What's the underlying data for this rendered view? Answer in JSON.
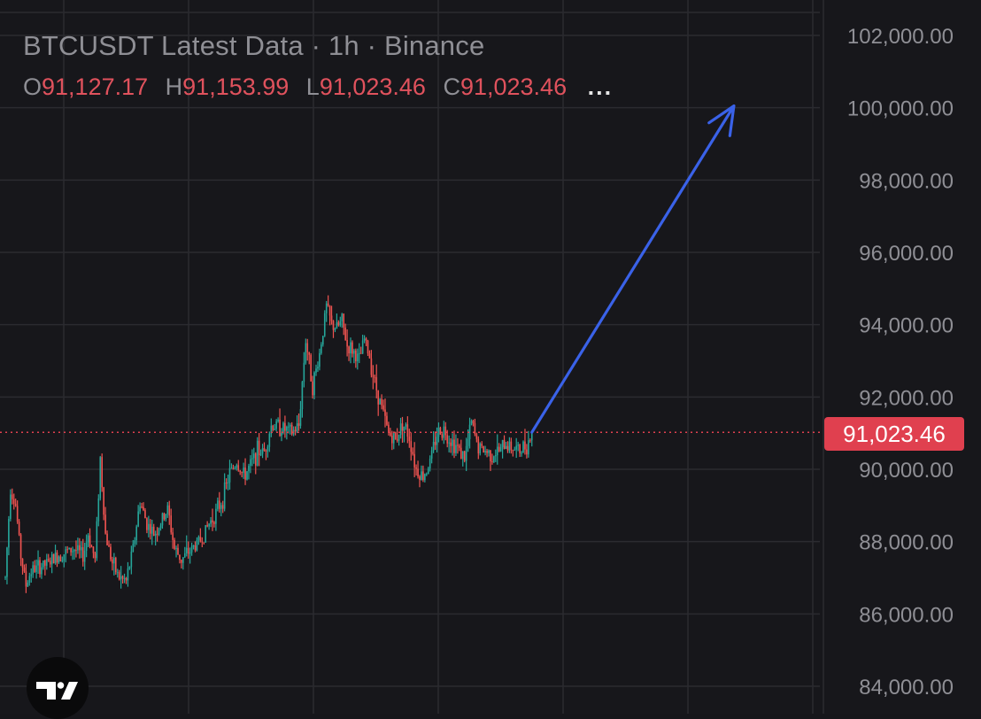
{
  "legend": {
    "title": "BTCUSDT Latest Data · 1h · Binance",
    "open_key": "O",
    "open": "91,127.17",
    "high_key": "H",
    "high": "91,153.99",
    "low_key": "L",
    "low": "91,023.46",
    "close_key": "C",
    "close": "91,023.46",
    "more": "..."
  },
  "last_price_label": "91,023.46",
  "colors": {
    "up": "#26a69a",
    "down": "#ef5350",
    "arrow": "#3a62e8",
    "price_line": "#e0404f",
    "grid": "#2b2b30",
    "axis_text": "#8f8f95"
  },
  "logo_icon": "tradingview-logo-icon",
  "chart_data": {
    "type": "candlestick",
    "symbol": "BTCUSDT",
    "interval": "1h",
    "exchange": "Binance",
    "y_ticks": [
      "102,000.00",
      "100,000.00",
      "98,000.00",
      "96,000.00",
      "94,000.00",
      "92,000.00",
      "90,000.00",
      "88,000.00",
      "86,000.00",
      "84,000.00"
    ],
    "ylim": [
      83500,
      103000
    ],
    "grid": true,
    "last_price": 91023.46,
    "price_path": [
      [
        0,
        87000
      ],
      [
        3,
        89500
      ],
      [
        6,
        89000
      ],
      [
        9,
        87600
      ],
      [
        12,
        86800
      ],
      [
        15,
        87200
      ],
      [
        20,
        87300
      ],
      [
        25,
        87400
      ],
      [
        30,
        87600
      ],
      [
        35,
        87700
      ],
      [
        40,
        87800
      ],
      [
        45,
        87600
      ],
      [
        48,
        88200
      ],
      [
        52,
        87500
      ],
      [
        55,
        90300
      ],
      [
        58,
        88200
      ],
      [
        62,
        87400
      ],
      [
        66,
        87000
      ],
      [
        70,
        86900
      ],
      [
        74,
        87800
      ],
      [
        78,
        89100
      ],
      [
        82,
        88500
      ],
      [
        86,
        88200
      ],
      [
        90,
        88500
      ],
      [
        94,
        88900
      ],
      [
        98,
        87800
      ],
      [
        102,
        87500
      ],
      [
        106,
        87700
      ],
      [
        110,
        87900
      ],
      [
        114,
        88100
      ],
      [
        118,
        88500
      ],
      [
        122,
        88800
      ],
      [
        126,
        89200
      ],
      [
        130,
        89900
      ],
      [
        134,
        90200
      ],
      [
        138,
        89800
      ],
      [
        142,
        90100
      ],
      [
        146,
        90500
      ],
      [
        150,
        90500
      ],
      [
        154,
        91200
      ],
      [
        158,
        91200
      ],
      [
        162,
        91100
      ],
      [
        166,
        91000
      ],
      [
        170,
        91200
      ],
      [
        174,
        93600
      ],
      [
        178,
        92300
      ],
      [
        182,
        93200
      ],
      [
        186,
        94500
      ],
      [
        189,
        94000
      ],
      [
        192,
        93900
      ],
      [
        195,
        94100
      ],
      [
        198,
        93400
      ],
      [
        201,
        93300
      ],
      [
        205,
        93000
      ],
      [
        208,
        93600
      ],
      [
        211,
        93100
      ],
      [
        214,
        92400
      ],
      [
        218,
        91700
      ],
      [
        222,
        91000
      ],
      [
        226,
        90800
      ],
      [
        230,
        91300
      ],
      [
        234,
        90900
      ],
      [
        238,
        90000
      ],
      [
        242,
        89800
      ],
      [
        246,
        90200
      ],
      [
        250,
        91000
      ],
      [
        254,
        91100
      ],
      [
        258,
        90800
      ],
      [
        262,
        90600
      ],
      [
        266,
        90300
      ],
      [
        270,
        91300
      ],
      [
        274,
        90600
      ],
      [
        278,
        90500
      ],
      [
        282,
        90400
      ],
      [
        286,
        90500
      ],
      [
        290,
        90700
      ],
      [
        294,
        90600
      ],
      [
        298,
        90500
      ],
      [
        302,
        90700
      ],
      [
        305,
        91000
      ]
    ],
    "forecast_arrow": {
      "from": {
        "bar": 305,
        "price": 91023.46
      },
      "to": {
        "bar": 422,
        "price": 100050
      }
    }
  }
}
